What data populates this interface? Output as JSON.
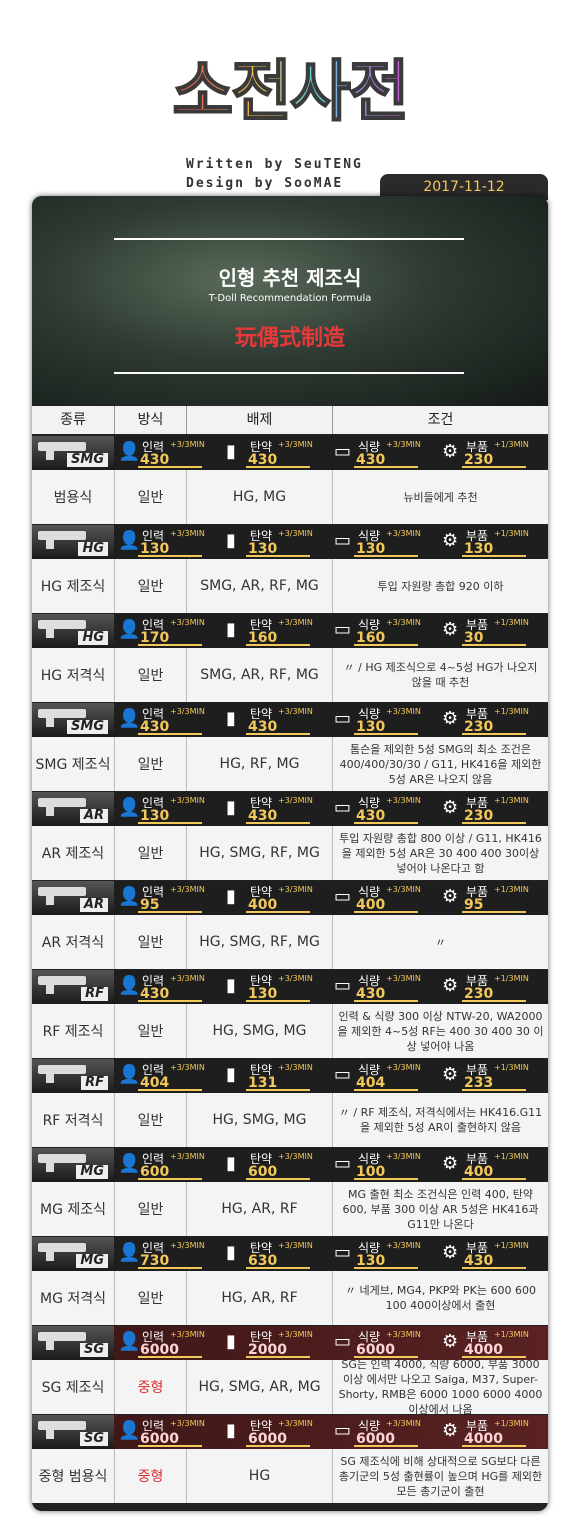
{
  "logo": {
    "text": "소전사전"
  },
  "credits": {
    "written": "Written by SeuTENG",
    "design": "Design by SooMAE"
  },
  "date": "2017-11-12",
  "banner": {
    "title_ko": "인형 추천 제조식",
    "title_en": "T-Doll Recommendation Formula",
    "title_cn": "玩偶式制造"
  },
  "columns": [
    "종류",
    "방식",
    "배제",
    "조건"
  ],
  "resource_labels": {
    "manpower": "인력",
    "ammo": "탄약",
    "ration": "식량",
    "parts": "부품"
  },
  "rates": {
    "main": "+3/3MIN",
    "parts": "+1/3MIN"
  },
  "recipes": [
    {
      "type_tag": "SMG",
      "manpower": "430",
      "ammo": "430",
      "ration": "430",
      "parts": "230",
      "name": "범용식",
      "method": "일반",
      "exclude": "HG, MG",
      "condition": "뉴비들에게 추천"
    },
    {
      "type_tag": "HG",
      "manpower": "130",
      "ammo": "130",
      "ration": "130",
      "parts": "130",
      "name": "HG 제조식",
      "method": "일반",
      "exclude": "SMG, AR, RF, MG",
      "condition": "투입 자원량 총합 920 이하"
    },
    {
      "type_tag": "HG",
      "manpower": "170",
      "ammo": "160",
      "ration": "160",
      "parts": "30",
      "name": "HG 저격식",
      "method": "일반",
      "exclude": "SMG, AR, RF, MG",
      "condition": "〃 / HG 제조식으로 4~5성 HG가 나오지 않을 때 추천"
    },
    {
      "type_tag": "SMG",
      "manpower": "430",
      "ammo": "430",
      "ration": "130",
      "parts": "230",
      "name": "SMG 제조식",
      "method": "일반",
      "exclude": "HG, RF, MG",
      "condition": "톰슨을 제외한 5성 SMG의 최소 조건은 400/400/30/30 / G11, HK416을 제외한 5성 AR은 나오지 않음"
    },
    {
      "type_tag": "AR",
      "manpower": "130",
      "ammo": "430",
      "ration": "430",
      "parts": "230",
      "name": "AR 제조식",
      "method": "일반",
      "exclude": "HG, SMG, RF, MG",
      "condition": "투입 자원량 총합 800 이상 / G11, HK416을 제외한 5성 AR은 30 400 400 30이상 넣어야 나온다고 함"
    },
    {
      "type_tag": "AR",
      "manpower": "95",
      "ammo": "400",
      "ration": "400",
      "parts": "95",
      "name": "AR 저격식",
      "method": "일반",
      "exclude": "HG, SMG, RF, MG",
      "condition": "〃"
    },
    {
      "type_tag": "RF",
      "manpower": "430",
      "ammo": "130",
      "ration": "430",
      "parts": "230",
      "name": "RF 제조식",
      "method": "일반",
      "exclude": "HG, SMG, MG",
      "condition": "인력 & 식량 300 이상 NTW-20, WA2000을 제외한 4~5성 RF는 400 30 400 30 이상 넣어야 나옴"
    },
    {
      "type_tag": "RF",
      "manpower": "404",
      "ammo": "131",
      "ration": "404",
      "parts": "233",
      "name": "RF 저격식",
      "method": "일반",
      "exclude": "HG, SMG, MG",
      "condition": "〃 / RF 제조식, 저격식에서는 HK416.G11을 제외한 5성 AR이 출현하지 않음"
    },
    {
      "type_tag": "MG",
      "manpower": "600",
      "ammo": "600",
      "ration": "100",
      "parts": "400",
      "name": "MG 제조식",
      "method": "일반",
      "exclude": "HG, AR, RF",
      "condition": "MG 출현 최소 조건식은 인력 400, 탄약 600, 부품 300 이상 AR 5성은 HK416과 G11만 나온다"
    },
    {
      "type_tag": "MG",
      "manpower": "730",
      "ammo": "630",
      "ration": "130",
      "parts": "430",
      "name": "MG 저격식",
      "method": "일반",
      "exclude": "HG, AR, RF",
      "condition": "〃 네게브, MG4, PKP와 PK는 600 600 100 400이상에서 출현"
    },
    {
      "type_tag": "SG",
      "manpower": "6000",
      "ammo": "2000",
      "ration": "6000",
      "parts": "4000",
      "name": "SG 제조식",
      "method": "중형",
      "exclude": "HG, SMG, AR, MG",
      "condition": "SG는 인력 4000, 식량 6000, 부품 3000 이상 에서만 나오고 Saiga, M37, Super-Shorty, RMB은 6000 1000 6000 4000이상에서 나옴"
    },
    {
      "type_tag": "SG",
      "manpower": "6000",
      "ammo": "6000",
      "ration": "6000",
      "parts": "4000",
      "name": "중형 범용식",
      "method": "중형",
      "exclude": "HG",
      "condition": "SG 제조식에 비해 상대적으로 SG보다 다른 총기군의 5성 출현률이 높으며 HG를 제외한 모든 총기군이 출현"
    }
  ]
}
